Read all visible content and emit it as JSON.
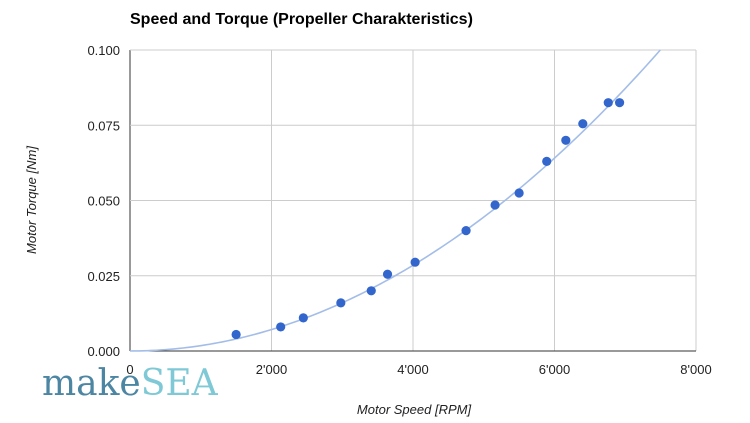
{
  "chart_data": {
    "type": "scatter",
    "title": "Speed and Torque (Propeller Charakteristics)",
    "xlabel": "Motor Speed [RPM]",
    "ylabel": "Motor Torque [Nm]",
    "xlim": [
      0,
      8000
    ],
    "ylim": [
      0,
      0.1
    ],
    "x_ticks": [
      0,
      2000,
      4000,
      6000,
      8000
    ],
    "x_tick_labels": [
      "0",
      "2'000",
      "4'000",
      "6'000",
      "8'000"
    ],
    "y_ticks": [
      0,
      0.025,
      0.05,
      0.075,
      0.1
    ],
    "y_tick_labels": [
      "0.000",
      "0.025",
      "0.050",
      "0.075",
      "0.100"
    ],
    "grid": true,
    "legend": "none",
    "points": {
      "x": [
        1500,
        2130,
        2450,
        2980,
        3410,
        3640,
        4030,
        4750,
        5160,
        5500,
        5890,
        6160,
        6400,
        6760,
        6920
      ],
      "y": [
        0.0055,
        0.008,
        0.011,
        0.016,
        0.02,
        0.0255,
        0.0295,
        0.04,
        0.0485,
        0.0525,
        0.063,
        0.07,
        0.0755,
        0.0825,
        0.0825
      ]
    },
    "trendline": {
      "type": "polynomial",
      "degree": 2,
      "coefficient": 1.78e-09
    },
    "colors": {
      "points": "#3366cc",
      "trendline": "#a4bde8",
      "grid": "#cccccc"
    }
  },
  "logo": {
    "part1": "make",
    "part2": "SEA",
    "color1": "#4d86a3",
    "color2": "#7fc9d6"
  }
}
